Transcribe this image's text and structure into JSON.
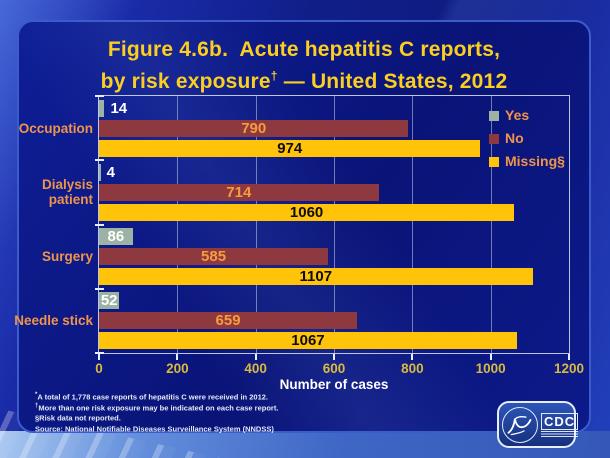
{
  "slide": {
    "title_line1": "Figure 4.6b.  Acute hepatitis C reports,",
    "title_line2_pre": "by risk exposure",
    "title_line2_sup": "†",
    "title_line2_post": " — United States, 2012"
  },
  "chart_data": {
    "type": "bar",
    "orientation": "horizontal",
    "title": "Figure 4.6b. Acute hepatitis C reports, by risk exposure† — United States, 2012",
    "categories": [
      "Occupation",
      "Dialysis patient",
      "Surgery",
      "Needle stick"
    ],
    "series": [
      {
        "name": "Yes",
        "color": "#9bb2a5",
        "label_color": "#ffffff",
        "values": [
          14,
          4,
          86,
          52
        ]
      },
      {
        "name": "No",
        "color": "#8e3940",
        "label_color": "#f79c3d",
        "values": [
          790,
          714,
          585,
          659
        ]
      },
      {
        "name": "Missing§",
        "color": "#ffc30a",
        "label_color": "#0d0d0d",
        "values": [
          974,
          1060,
          1107,
          1067
        ]
      }
    ],
    "xlabel": "Number of cases",
    "xlim": [
      0,
      1200
    ],
    "xticks": [
      0,
      200,
      400,
      600,
      800,
      1000,
      1200
    ],
    "grid": "vertical",
    "legend_position": "inside-top-right"
  },
  "footnotes": [
    {
      "sup": "*",
      "text": "A total of 1,778 case reports of hepatitis C were received in 2012."
    },
    {
      "sup": "†",
      "text": "More than one risk exposure may be indicated on each case report."
    },
    {
      "sup": "",
      "text": "§Risk data not reported."
    },
    {
      "sup": "",
      "text": "Source: National Notifiable Diseases Surveillance System (NNDSS)"
    }
  ],
  "logo": {
    "text": "CDC"
  },
  "colors": {
    "title": "#fccf1e",
    "category_label": "#f0944a",
    "tick_label": "#d9b93f",
    "axis_label": "#ffffff",
    "panel_bg": "#0a1478",
    "panel_border": "#3d5ccc",
    "yes_bar": "#9bb2a5",
    "no_bar": "#8e3940",
    "missing_bar": "#ffc30a"
  }
}
